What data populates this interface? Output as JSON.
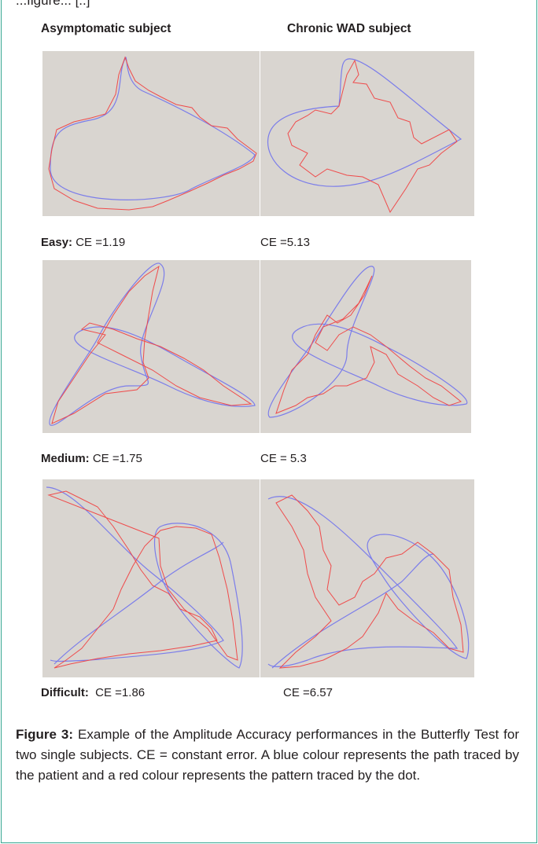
{
  "top_caption": "...figure... [..]",
  "columns": {
    "left": "Asymptomatic subject",
    "right": "Chronic WAD subject"
  },
  "rows": [
    {
      "level": "Easy",
      "left_ce": "CE =1.19",
      "right_ce": "CE =5.13"
    },
    {
      "level": "Medium",
      "left_ce": "CE =1.75",
      "right_ce": "CE = 5.3"
    },
    {
      "level": "Difficult",
      "left_ce": "CE =1.86",
      "right_ce": "CE =6.57"
    }
  ],
  "caption": {
    "label": "Figure 3:",
    "text": " Example of the Amplitude Accuracy performances in the Butterfly Test for two single subjects. CE = constant error. A blue colour represents the path traced by the patient and a red colour represents the pattern traced by the dot."
  },
  "colors": {
    "blue_path": "#7b7dea",
    "red_path": "#ef4b4b",
    "panel_bg": "#d9d5d0",
    "frame": "#34a591"
  }
}
